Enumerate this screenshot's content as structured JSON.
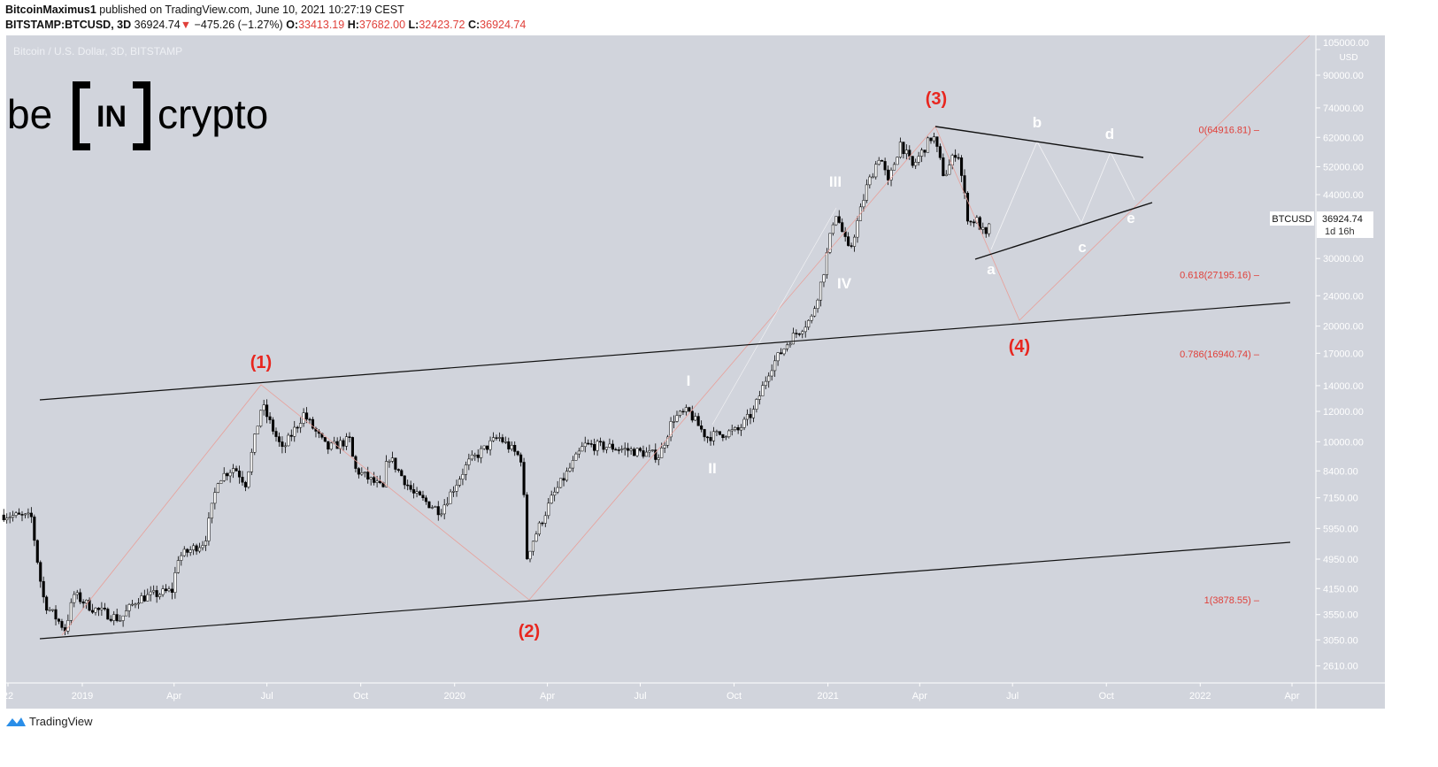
{
  "header": {
    "author": "BitcoinMaximus1",
    "published": "published on TradingView.com, June 10, 2021 10:27:19 CEST",
    "symbol": "BITSTAMP:BTCUSD, 3D",
    "last": "36924.74",
    "change": "−475.26 (−1.27%)",
    "o_label": "O:",
    "o": "33413.19",
    "h_label": "H:",
    "h": "37682.00",
    "l_label": "L:",
    "l": "32423.72",
    "c_label": "C:",
    "c": "36924.74"
  },
  "chart_title": "Bitcoin / U.S. Dollar, 3D, BITSTAMP",
  "logo": {
    "text_left": "be",
    "text_box": "IN",
    "text_right": "crypto"
  },
  "footer": {
    "brand": "TradingView",
    "icon": "tradingview-logo-icon"
  },
  "price_label": {
    "symbol": "BTCUSD",
    "price": "36924.74",
    "countdown": "1d 16h"
  },
  "colors": {
    "background": "#d1d4dc",
    "annotation_red": "#e8261f",
    "annotation_white": "#ffffff",
    "fib_red": "#e0403a",
    "up": "#ffffff",
    "down": "#000000"
  },
  "chart_data": {
    "type": "candlestick",
    "title": "Bitcoin / U.S. Dollar, 3D, BITSTAMP",
    "y_scale": "log",
    "y_unit": "USD",
    "y_ticks": [
      "105000.00",
      "90000.00",
      "74000.00",
      "62000.00",
      "52000.00",
      "44000.00",
      "30000.00",
      "24000.00",
      "20000.00",
      "17000.00",
      "14000.00",
      "12000.00",
      "10000.00",
      "8400.00",
      "7150.00",
      "5950.00",
      "4950.00",
      "4150.00",
      "3550.00",
      "3050.00",
      "2610.00"
    ],
    "x_ticks": [
      {
        "label": "22",
        "date": "2018-10-01"
      },
      {
        "label": "2019",
        "date": "2019-01-01"
      },
      {
        "label": "Apr",
        "date": "2019-04-01"
      },
      {
        "label": "Jul",
        "date": "2019-07-01"
      },
      {
        "label": "Oct",
        "date": "2019-10-01"
      },
      {
        "label": "2020",
        "date": "2020-01-01"
      },
      {
        "label": "Apr",
        "date": "2020-04-01"
      },
      {
        "label": "Jul",
        "date": "2020-07-01"
      },
      {
        "label": "Oct",
        "date": "2020-10-01"
      },
      {
        "label": "2021",
        "date": "2021-01-01"
      },
      {
        "label": "Apr",
        "date": "2021-04-01"
      },
      {
        "label": "Jul",
        "date": "2021-07-01"
      },
      {
        "label": "Oct",
        "date": "2021-10-01"
      },
      {
        "label": "2022",
        "date": "2022-01-01"
      },
      {
        "label": "Apr",
        "date": "2022-04-01"
      }
    ],
    "price_path_approx": [
      [
        "2018-10-16",
        6450
      ],
      [
        "2018-11-12",
        6350
      ],
      [
        "2018-11-20",
        4500
      ],
      [
        "2018-11-25",
        3800
      ],
      [
        "2018-12-15",
        3250
      ],
      [
        "2018-12-24",
        4000
      ],
      [
        "2019-01-10",
        3700
      ],
      [
        "2019-02-07",
        3450
      ],
      [
        "2019-02-24",
        3900
      ],
      [
        "2019-03-30",
        4100
      ],
      [
        "2019-04-05",
        5000
      ],
      [
        "2019-05-01",
        5500
      ],
      [
        "2019-05-14",
        8000
      ],
      [
        "2019-05-30",
        8600
      ],
      [
        "2019-06-10",
        7800
      ],
      [
        "2019-06-26",
        12500
      ],
      [
        "2019-07-16",
        9500
      ],
      [
        "2019-08-06",
        11800
      ],
      [
        "2019-08-29",
        9600
      ],
      [
        "2019-09-20",
        10100
      ],
      [
        "2019-09-25",
        8500
      ],
      [
        "2019-10-24",
        7500
      ],
      [
        "2019-10-27",
        9300
      ],
      [
        "2019-11-22",
        7300
      ],
      [
        "2019-12-18",
        6600
      ],
      [
        "2020-01-14",
        8800
      ],
      [
        "2020-02-13",
        10300
      ],
      [
        "2020-03-07",
        9000
      ],
      [
        "2020-03-12",
        5000
      ],
      [
        "2020-03-16",
        5400
      ],
      [
        "2020-04-06",
        7200
      ],
      [
        "2020-05-07",
        9800
      ],
      [
        "2020-06-01",
        9700
      ],
      [
        "2020-07-20",
        9200
      ],
      [
        "2020-08-02",
        11500
      ],
      [
        "2020-08-17",
        12000
      ],
      [
        "2020-09-04",
        10300
      ],
      [
        "2020-10-05",
        10700
      ],
      [
        "2020-10-20",
        12000
      ],
      [
        "2020-11-05",
        15500
      ],
      [
        "2020-11-25",
        18500
      ],
      [
        "2020-12-16",
        21000
      ],
      [
        "2020-12-27",
        27000
      ],
      [
        "2021-01-08",
        40000
      ],
      [
        "2021-01-22",
        31000
      ],
      [
        "2021-02-08",
        46000
      ],
      [
        "2021-02-21",
        56000
      ],
      [
        "2021-03-01",
        47000
      ],
      [
        "2021-03-13",
        60000
      ],
      [
        "2021-03-25",
        52000
      ],
      [
        "2021-04-14",
        63000
      ],
      [
        "2021-04-25",
        49000
      ],
      [
        "2021-05-08",
        58000
      ],
      [
        "2021-05-19",
        37000
      ],
      [
        "2021-05-26",
        38000
      ],
      [
        "2021-06-07",
        33400
      ],
      [
        "2021-06-10",
        36924.74
      ]
    ],
    "fib_levels": [
      {
        "label": "0(64916.81)",
        "value": 64916.81
      },
      {
        "label": "0.618(27195.16)",
        "value": 27195.16
      },
      {
        "label": "0.786(16940.74)",
        "value": 16940.74
      },
      {
        "label": "1(3878.55)",
        "value": 3878.55
      }
    ],
    "wave_labels_major": [
      "(1)",
      "(2)",
      "(3)",
      "(4)"
    ],
    "wave_labels_minor": [
      "I",
      "II",
      "III",
      "IV"
    ],
    "triangle_labels": [
      "a",
      "b",
      "c",
      "d",
      "e"
    ]
  }
}
